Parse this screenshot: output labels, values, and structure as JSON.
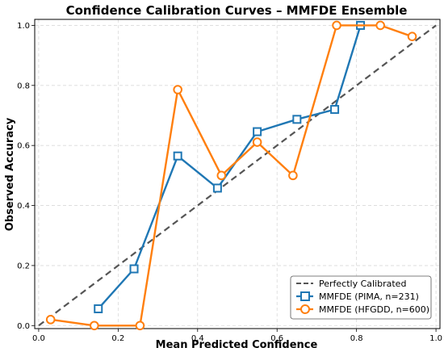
{
  "chart_data": {
    "type": "line",
    "title": "Confidence Calibration Curves – MMFDE Ensemble",
    "xlabel": "Mean Predicted Confidence",
    "ylabel": "Observed Accuracy",
    "xlim": [
      -0.01,
      1.01
    ],
    "ylim": [
      -0.01,
      1.02
    ],
    "xticks": [
      0.0,
      0.2,
      0.4,
      0.6,
      0.8,
      1.0
    ],
    "yticks": [
      0.0,
      0.2,
      0.4,
      0.6,
      0.8,
      1.0
    ],
    "x_tick_labels": [
      "0.0",
      "0.2",
      "0.4",
      "0.6",
      "0.8",
      "1.0"
    ],
    "y_tick_labels": [
      "0.0",
      "0.2",
      "0.4",
      "0.6",
      "0.8",
      "1.0"
    ],
    "grid": true,
    "legend_position": "bottom-right",
    "reference": {
      "name": "Perfectly Calibrated",
      "x": [
        0.0,
        1.0
      ],
      "y": [
        0.0,
        1.0
      ],
      "color": "#555555",
      "style": "dashed"
    },
    "series": [
      {
        "name": "MMFDE (PIMA, n=231)",
        "color": "#1f77b4",
        "marker": "square",
        "x": [
          0.15,
          0.24,
          0.35,
          0.45,
          0.55,
          0.65,
          0.745,
          0.81
        ],
        "y": [
          0.056,
          0.189,
          0.565,
          0.458,
          0.646,
          0.687,
          0.72,
          1.0
        ]
      },
      {
        "name": "MMFDE (HFGDD, n=600)",
        "color": "#ff7f0e",
        "marker": "circle",
        "x": [
          0.03,
          0.14,
          0.255,
          0.35,
          0.46,
          0.55,
          0.64,
          0.75,
          0.86,
          0.94
        ],
        "y": [
          0.02,
          0.0,
          0.0,
          0.786,
          0.5,
          0.611,
          0.5,
          1.0,
          1.0,
          0.963
        ]
      }
    ]
  }
}
